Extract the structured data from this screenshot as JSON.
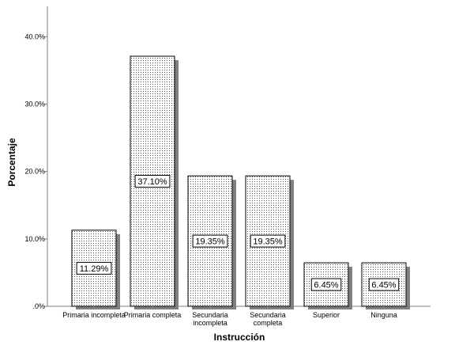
{
  "chart_data": {
    "type": "bar",
    "title": "",
    "xlabel": "Instrucción",
    "ylabel": "Porcentaje",
    "categories": [
      [
        "Primaria incompleta"
      ],
      [
        "Primaria completa"
      ],
      [
        "Secundaria",
        "incompleta"
      ],
      [
        "Secundaria",
        "completa"
      ],
      [
        "Superior"
      ],
      [
        "Ninguna"
      ]
    ],
    "values": [
      11.29,
      37.1,
      19.35,
      19.35,
      6.45,
      6.45
    ],
    "data_labels": [
      "11.29%",
      "37.10%",
      "19.35%",
      "19.35%",
      "6.45%",
      "6.45%"
    ],
    "yticks": [
      0,
      10,
      20,
      30,
      40
    ],
    "ytick_labels": [
      ".0%",
      "10.0%",
      "20.0%",
      "30.0%",
      "40.0%"
    ],
    "ylim": [
      0,
      44.5
    ],
    "grid": false,
    "legend": "none",
    "colors": {
      "bar_fill": "#ffffff",
      "bar_dots": "#555555",
      "bar_shadow": "#808080",
      "axis": "#7f7f7f"
    }
  }
}
